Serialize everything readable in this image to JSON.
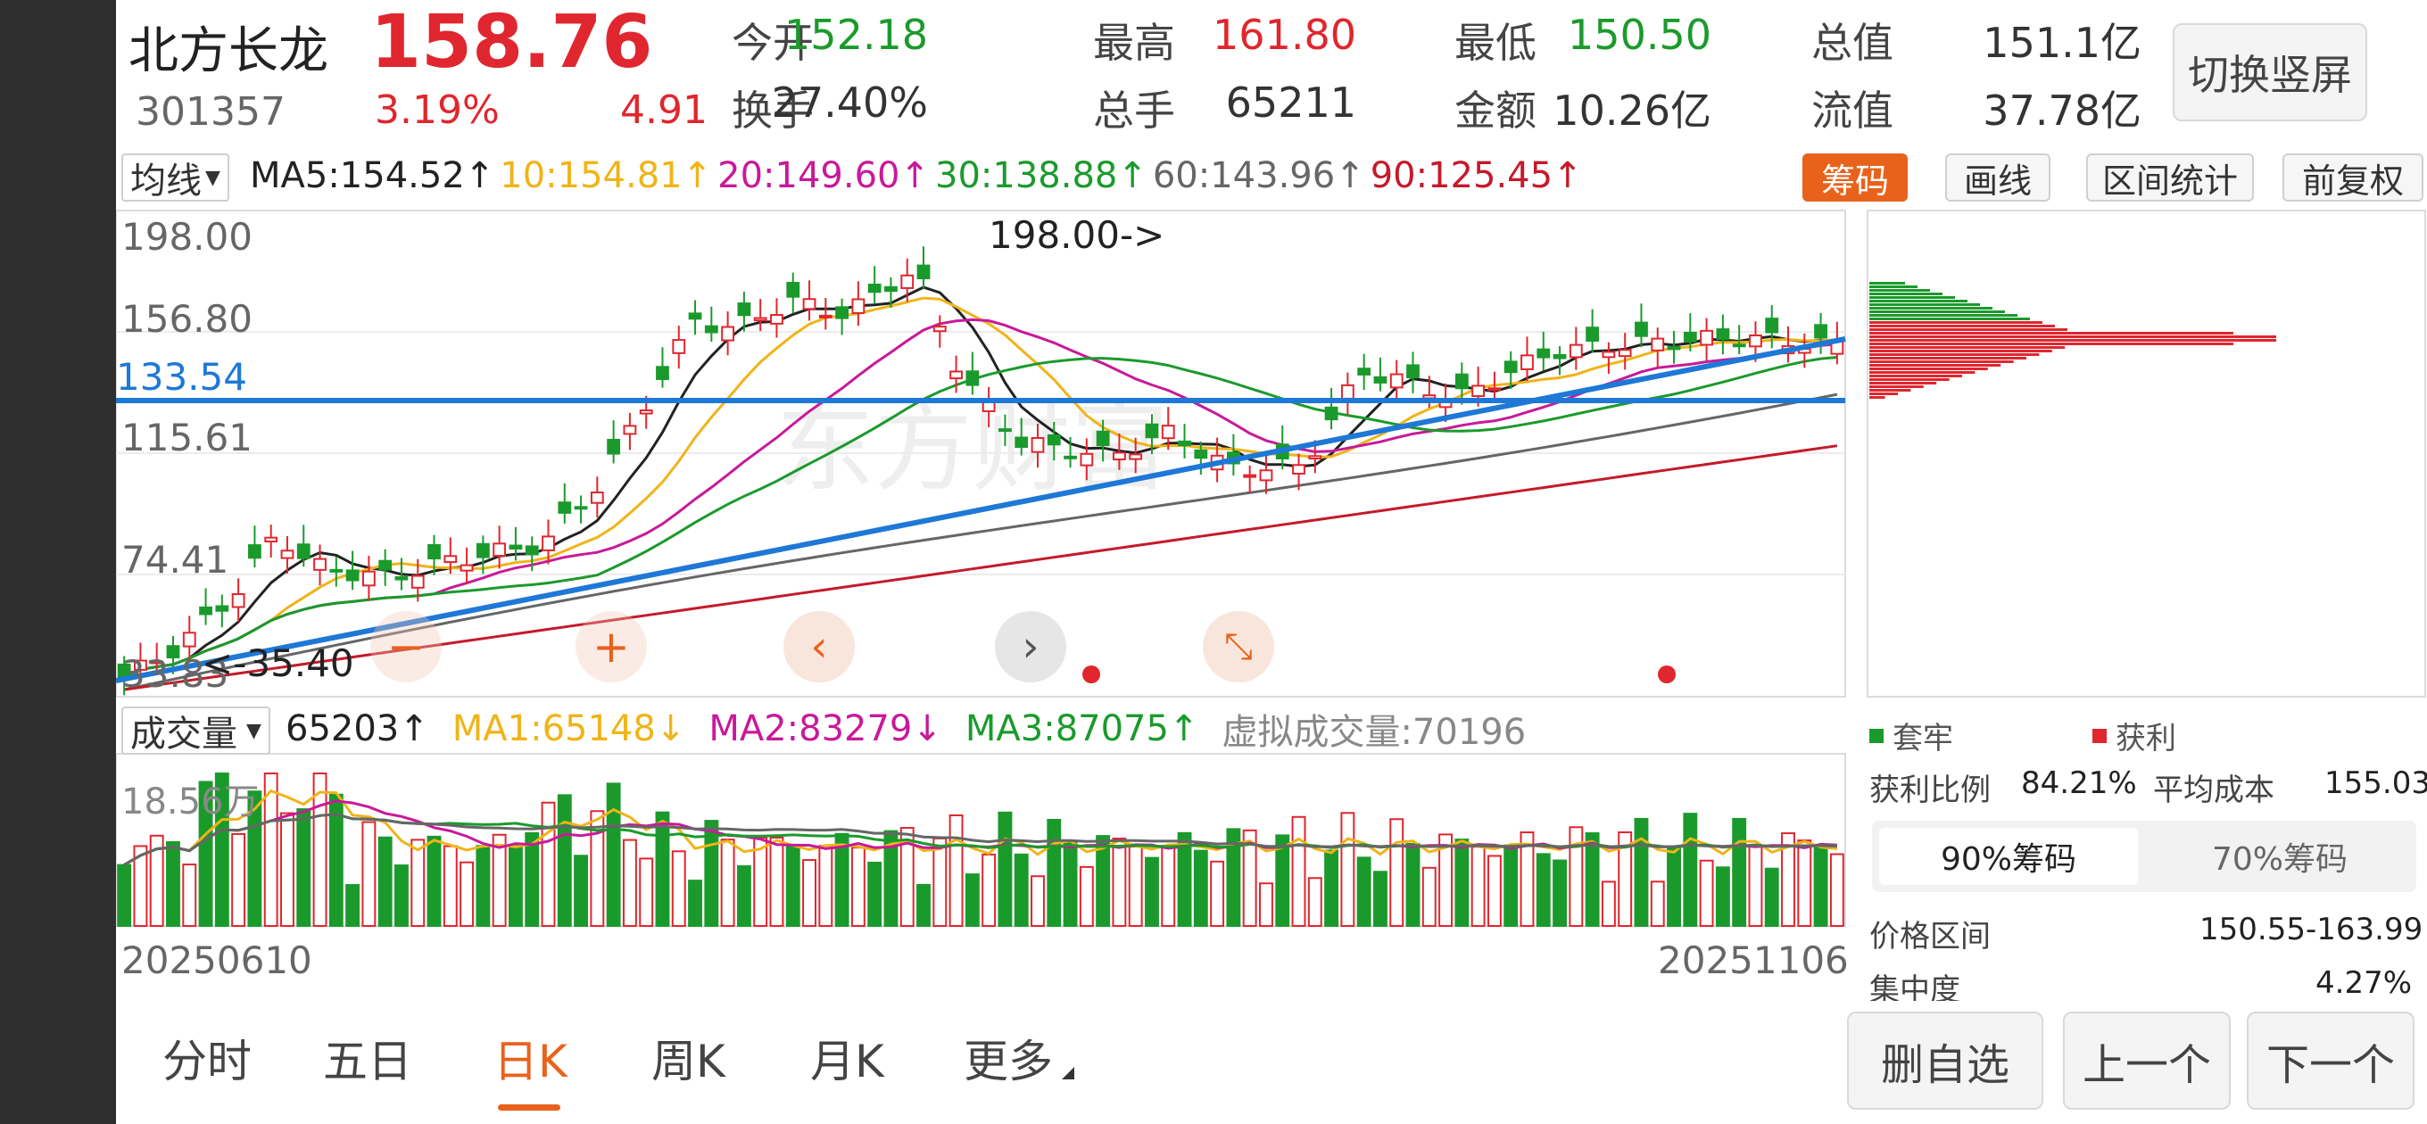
{
  "stock": {
    "name": "北方长龙",
    "price": "158.76",
    "code": "301357",
    "change_pct": "3.19%",
    "change_amt": "4.91",
    "switch_label": "切换竖屏"
  },
  "quote": [
    {
      "label": "今开",
      "value": "152.18",
      "color": "#1b9a2c"
    },
    {
      "label": "最高",
      "value": "161.80",
      "color": "#e0262e"
    },
    {
      "label": "最低",
      "value": "150.50",
      "color": "#1b9a2c"
    },
    {
      "label": "总值",
      "value": "151.1亿",
      "color": "#333333"
    },
    {
      "label": "换手",
      "value": "27.40%",
      "color": "#333333"
    },
    {
      "label": "总手",
      "value": "65211",
      "color": "#333333"
    },
    {
      "label": "金额",
      "value": "10.26亿",
      "color": "#333333"
    },
    {
      "label": "流值",
      "value": "37.78亿",
      "color": "#333333"
    }
  ],
  "ma_bar": {
    "selector": "均线",
    "items": [
      {
        "text": "MA5:154.52↑",
        "color": "#222222"
      },
      {
        "text": "10:154.81↑",
        "color": "#f0b418"
      },
      {
        "text": "20:149.60↑",
        "color": "#c8199a"
      },
      {
        "text": "30:138.88↑",
        "color": "#1b9a2c"
      },
      {
        "text": "60:143.96↑",
        "color": "#666666"
      },
      {
        "text": "90:125.45↑",
        "color": "#c41a2a"
      }
    ]
  },
  "tools": {
    "chips": "筹码",
    "draw": "画线",
    "range_stats": "区间统计",
    "adjust": "前复权"
  },
  "price_axis": [
    "198.00",
    "156.80",
    "133.54",
    "115.61",
    "74.41",
    "33.83"
  ],
  "annotations": {
    "high": "198.00->",
    "low": "<-35.40"
  },
  "volume": {
    "selector": "成交量",
    "value": "65203↑",
    "ma1": "MA1:65148↓",
    "ma2": "MA2:83279↓",
    "ma3": "MA3:87075↑",
    "virtual": "虚拟成交量:70196",
    "axis_top": "18.56万"
  },
  "dates": {
    "start": "20250610",
    "end": "20251106"
  },
  "chip_legend": {
    "trapped": "套牢",
    "profit": "获利"
  },
  "chip_stats": {
    "profit_ratio_label": "获利比例",
    "profit_ratio": "84.21%",
    "avg_cost_label": "平均成本",
    "avg_cost": "155.03",
    "tab90": "90%筹码",
    "tab70": "70%筹码",
    "range_label": "价格区间",
    "range_value": "150.55-163.99",
    "conc_label": "集中度",
    "conc_value": "4.27%"
  },
  "tabs": [
    "分时",
    "五日",
    "日K",
    "周K",
    "月K",
    "更多"
  ],
  "active_tab": "日K",
  "actions": {
    "remove": "删自选",
    "prev": "上一个",
    "next": "下一个"
  },
  "colors": {
    "up": "#e0262e",
    "down": "#1b9a2c",
    "accent": "#e8621c",
    "trend": "#1e78d6"
  }
}
